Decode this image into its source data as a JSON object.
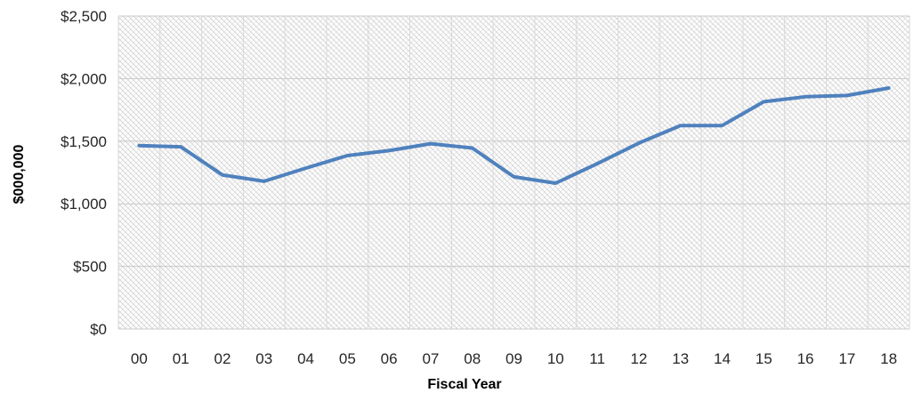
{
  "chart_data": {
    "type": "line",
    "title": "",
    "xlabel": "Fiscal Year",
    "ylabel": "$000,000",
    "categories": [
      "00",
      "01",
      "02",
      "03",
      "04",
      "05",
      "06",
      "07",
      "08",
      "09",
      "10",
      "11",
      "12",
      "13",
      "14",
      "15",
      "16",
      "17",
      "18"
    ],
    "series": [
      {
        "values": [
          1465,
          1455,
          1230,
          1180,
          1285,
          1385,
          1425,
          1480,
          1445,
          1215,
          1165,
          1320,
          1485,
          1625,
          1625,
          1815,
          1855,
          1865,
          1925
        ]
      }
    ],
    "ylim": [
      0,
      2500
    ],
    "yticks": [
      0,
      500,
      1000,
      1500,
      2000,
      2500
    ],
    "ytick_labels": [
      "$0",
      "$500",
      "$1,000",
      "$1,500",
      "$2,000",
      "$2,500"
    ],
    "grid": true,
    "legend": "none",
    "line_color": "#4F81BD",
    "background_pattern": "diagonal-hatch"
  }
}
